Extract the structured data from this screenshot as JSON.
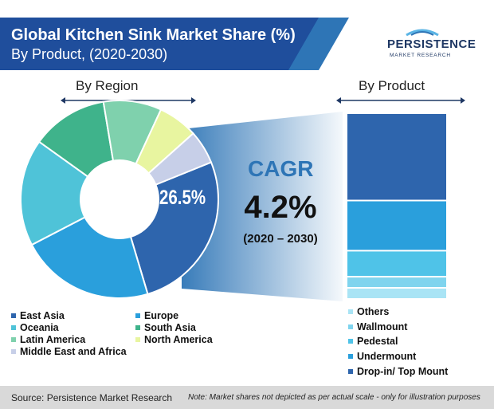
{
  "header": {
    "title": "Global Kitchen Sink Market Share (%)",
    "subtitle": "By Product, (2020-2030)"
  },
  "logo": {
    "word": "PERSISTENCE",
    "sub": "MARKET RESEARCH"
  },
  "colors": {
    "banner_dark": "#1f4e9c",
    "banner_light": "#2e75b6",
    "east_asia": "#2e65ad",
    "europe": "#2a9fdc",
    "oceania": "#4fc3d8",
    "south_asia": "#3fb38b",
    "latin_america": "#7fd1ad",
    "north_america": "#e8f5a0",
    "mea": "#c7cfe8",
    "wedge": "#2e75b6"
  },
  "chart_data": [
    {
      "type": "pie",
      "title": "By Region",
      "slices": [
        {
          "label": "East Asia",
          "value": 26.5,
          "color": "#2e65ad"
        },
        {
          "label": "Europe",
          "value": 22.0,
          "color": "#2a9fdc"
        },
        {
          "label": "Oceania",
          "value": 17.5,
          "color": "#4fc3d8"
        },
        {
          "label": "South Asia",
          "value": 12.5,
          "color": "#3fb38b"
        },
        {
          "label": "Latin America",
          "value": 9.5,
          "color": "#7fd1ad"
        },
        {
          "label": "North America",
          "value": 6.5,
          "color": "#e8f5a0"
        },
        {
          "label": "Middle East and Africa",
          "value": 5.5,
          "color": "#c7cfe8"
        }
      ],
      "highlight_label": "26.5%",
      "legend_position": "bottom"
    },
    {
      "type": "bar",
      "title": "By Product",
      "stacked": true,
      "series": [
        {
          "name": "Drop-in/ Top Mount",
          "value": 47,
          "color": "#2e65ad"
        },
        {
          "name": "Undermount",
          "value": 27,
          "color": "#2a9fdc"
        },
        {
          "name": "Pedestal",
          "value": 14,
          "color": "#4fc3e8"
        },
        {
          "name": "Wallmount",
          "value": 6,
          "color": "#7fd4ee"
        },
        {
          "name": "Others",
          "value": 6,
          "color": "#a9e4f5"
        }
      ],
      "legend_position": "bottom"
    }
  ],
  "cagr": {
    "label": "CAGR",
    "value": "4.2%",
    "period": "(2020 – 2030)"
  },
  "footer": {
    "source": "Source: Persistence Market Research",
    "note": "Note: Market shares not depicted as per actual scale - only for illustration purposes"
  }
}
